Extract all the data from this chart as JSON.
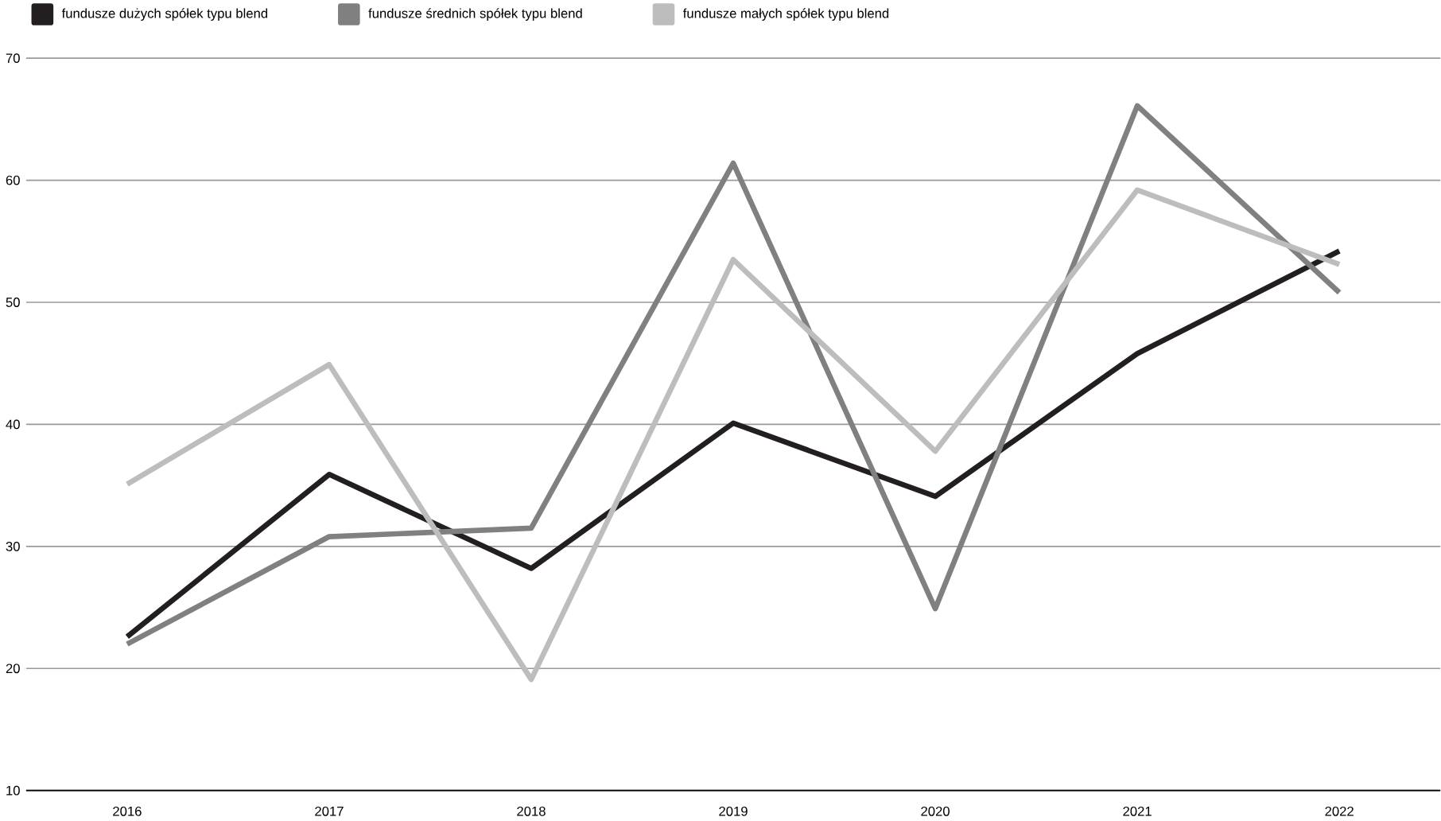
{
  "chart_data": {
    "type": "line",
    "categories": [
      "2016",
      "2017",
      "2018",
      "2019",
      "2020",
      "2021",
      "2022"
    ],
    "series": [
      {
        "name": "fundusze dużych spółek typu blend",
        "color": "#231f20",
        "values": [
          22.6,
          35.9,
          28.2,
          40.1,
          34.1,
          45.8,
          54.2
        ]
      },
      {
        "name": "fundusze średnich spółek typu blend",
        "color": "#808080",
        "values": [
          22.0,
          30.8,
          31.5,
          61.4,
          24.9,
          66.1,
          50.8
        ]
      },
      {
        "name": "fundusze małych spółek typu blend",
        "color": "#bdbdbd",
        "values": [
          35.1,
          44.9,
          19.1,
          53.5,
          37.8,
          59.2,
          53.1
        ]
      }
    ],
    "ylim": [
      10,
      70
    ],
    "yticks": [
      10,
      20,
      30,
      40,
      50,
      60,
      70
    ],
    "grid": "y",
    "legend": "top left",
    "marker": "none",
    "line_style": "solid"
  }
}
